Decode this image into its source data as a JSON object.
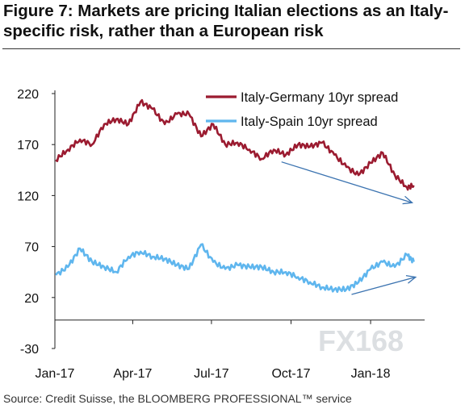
{
  "title": "Figure 7: Markets are pricing Italian elections as an Italy-specific risk, rather than a European risk",
  "source": "Source: Credit Suisse, the BLOOMBERG PROFESSIONAL™ service",
  "watermark": "FX168",
  "chart_data": {
    "type": "line",
    "x_tick_labels": [
      "Jan-17",
      "Apr-17",
      "Jul-17",
      "Oct-17",
      "Jan-18"
    ],
    "x_tick_dates": [
      "2017-01-01",
      "2017-04-01",
      "2017-07-01",
      "2017-10-01",
      "2018-01-01"
    ],
    "xlim": [
      "2017-01-01",
      "2018-02-25"
    ],
    "ylim": [
      -30,
      220
    ],
    "y_ticks": [
      -30,
      20,
      70,
      120,
      170,
      220
    ],
    "grid": false,
    "legend_position": "top-right",
    "x": [
      "2017-01-02",
      "2017-01-16",
      "2017-01-30",
      "2017-02-13",
      "2017-02-27",
      "2017-03-13",
      "2017-03-27",
      "2017-04-10",
      "2017-04-24",
      "2017-05-08",
      "2017-05-22",
      "2017-06-05",
      "2017-06-19",
      "2017-07-03",
      "2017-07-17",
      "2017-07-31",
      "2017-08-14",
      "2017-08-28",
      "2017-09-11",
      "2017-09-25",
      "2017-10-09",
      "2017-10-23",
      "2017-11-06",
      "2017-11-20",
      "2017-12-04",
      "2017-12-18",
      "2018-01-01",
      "2018-01-15",
      "2018-01-29",
      "2018-02-12",
      "2018-02-20"
    ],
    "series": [
      {
        "name": "Italy-Germany 10yr spread",
        "color": "#9b1b30",
        "values": [
          155,
          165,
          175,
          170,
          190,
          195,
          190,
          212,
          205,
          190,
          200,
          200,
          178,
          190,
          170,
          172,
          165,
          156,
          165,
          160,
          170,
          168,
          172,
          160,
          148,
          140,
          152,
          162,
          140,
          128,
          130
        ]
      },
      {
        "name": "Italy-Spain 10yr spread",
        "color": "#5fb6ee",
        "values": [
          42,
          50,
          68,
          55,
          50,
          45,
          60,
          65,
          60,
          58,
          52,
          48,
          72,
          55,
          48,
          52,
          50,
          50,
          45,
          45,
          40,
          35,
          30,
          28,
          28,
          35,
          48,
          55,
          50,
          62,
          55
        ]
      }
    ],
    "annotations": [
      {
        "type": "arrow",
        "from": [
          "2017-09-20",
          153
        ],
        "to": [
          "2018-02-18",
          113
        ],
        "color": "#3b73b0"
      },
      {
        "type": "arrow",
        "from": [
          "2017-12-10",
          23
        ],
        "to": [
          "2018-02-22",
          40
        ],
        "color": "#3b73b0"
      }
    ]
  }
}
